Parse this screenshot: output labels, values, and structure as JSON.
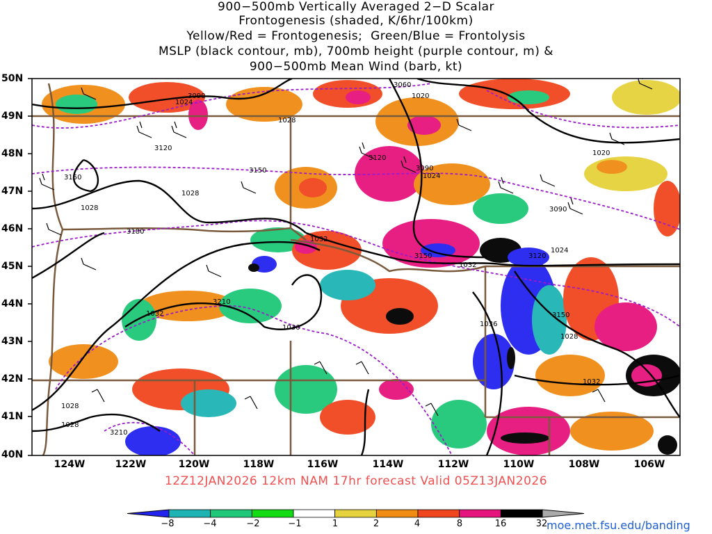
{
  "title_lines": [
    "900−500mb Vertically Averaged 2−D Scalar",
    "Frontogenesis (shaded, K/6hr/100km)",
    "Yellow/Red = Frontogenesis;  Green/Blue = Frontolysis",
    "MSLP (black contour, mb), 700mb height (purple contour, m) &",
    "900−500mb Mean Wind (barb, kt)"
  ],
  "latitudes": [
    "50N",
    "49N",
    "48N",
    "47N",
    "46N",
    "45N",
    "44N",
    "43N",
    "42N",
    "41N",
    "40N"
  ],
  "longitudes": [
    "124W",
    "122W",
    "120W",
    "118W",
    "116W",
    "114W",
    "112W",
    "110W",
    "108W",
    "106W"
  ],
  "mslp_labels": [
    "1024",
    "1020",
    "1028",
    "1024",
    "1028",
    "1028",
    "1024",
    "1032",
    "1032",
    "1032",
    "1036",
    "1036",
    "1028",
    "1032",
    "1020",
    "1028",
    "1028"
  ],
  "height_labels": [
    "3090",
    "3060",
    "3120",
    "3150",
    "3120",
    "3090",
    "3150",
    "3180",
    "3150",
    "3210",
    "3150",
    "3090",
    "3210",
    "3120"
  ],
  "footer": "12Z12JAN2026 12km NAM 17hr forecast Valid 05Z13JAN2026",
  "colorbar": {
    "labels": [
      "−8",
      "−4",
      "−2",
      "−1",
      "1",
      "2",
      "4",
      "8",
      "16",
      "32"
    ],
    "colors": [
      "#2323f0",
      "#1fb4b4",
      "#1ec878",
      "#14dc14",
      "#ffffff",
      "#e6d23c",
      "#f08c14",
      "#f0461e",
      "#e6147d",
      "#000000",
      "#aaaaaa"
    ]
  },
  "credit": "moe.met.fsu.edu/banding"
}
